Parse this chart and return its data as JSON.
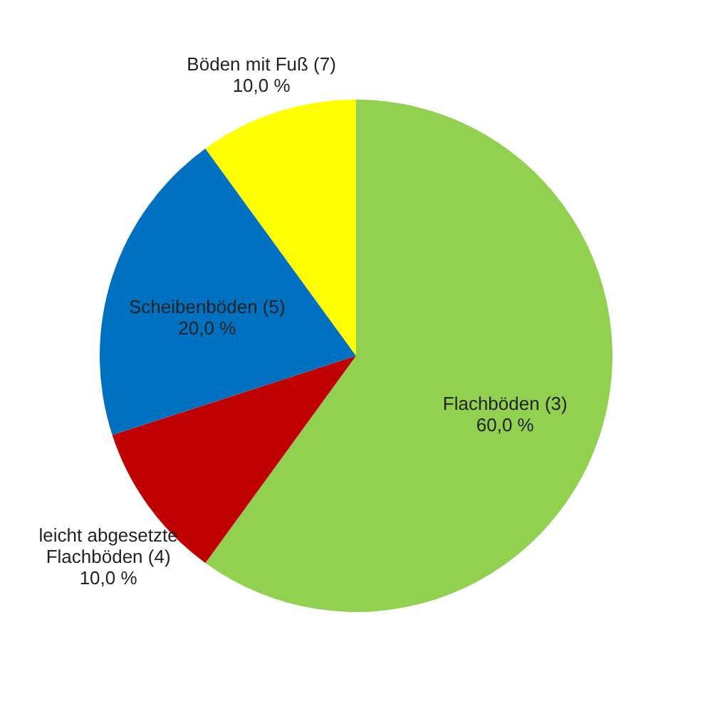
{
  "chart_data": {
    "type": "pie",
    "categories": [
      "Flachböden (3)",
      "leicht abgesetzte Flachböden (4)",
      "Scheibenböden (5)",
      "Böden mit Fuß (7)"
    ],
    "values": [
      60,
      10,
      20,
      10
    ],
    "value_labels": [
      "60,0 %",
      "10,0 %",
      "20,0 %",
      "10,0 %"
    ],
    "colors": [
      "#92d050",
      "#c00000",
      "#0070c0",
      "#ffff00"
    ],
    "legend": false
  }
}
